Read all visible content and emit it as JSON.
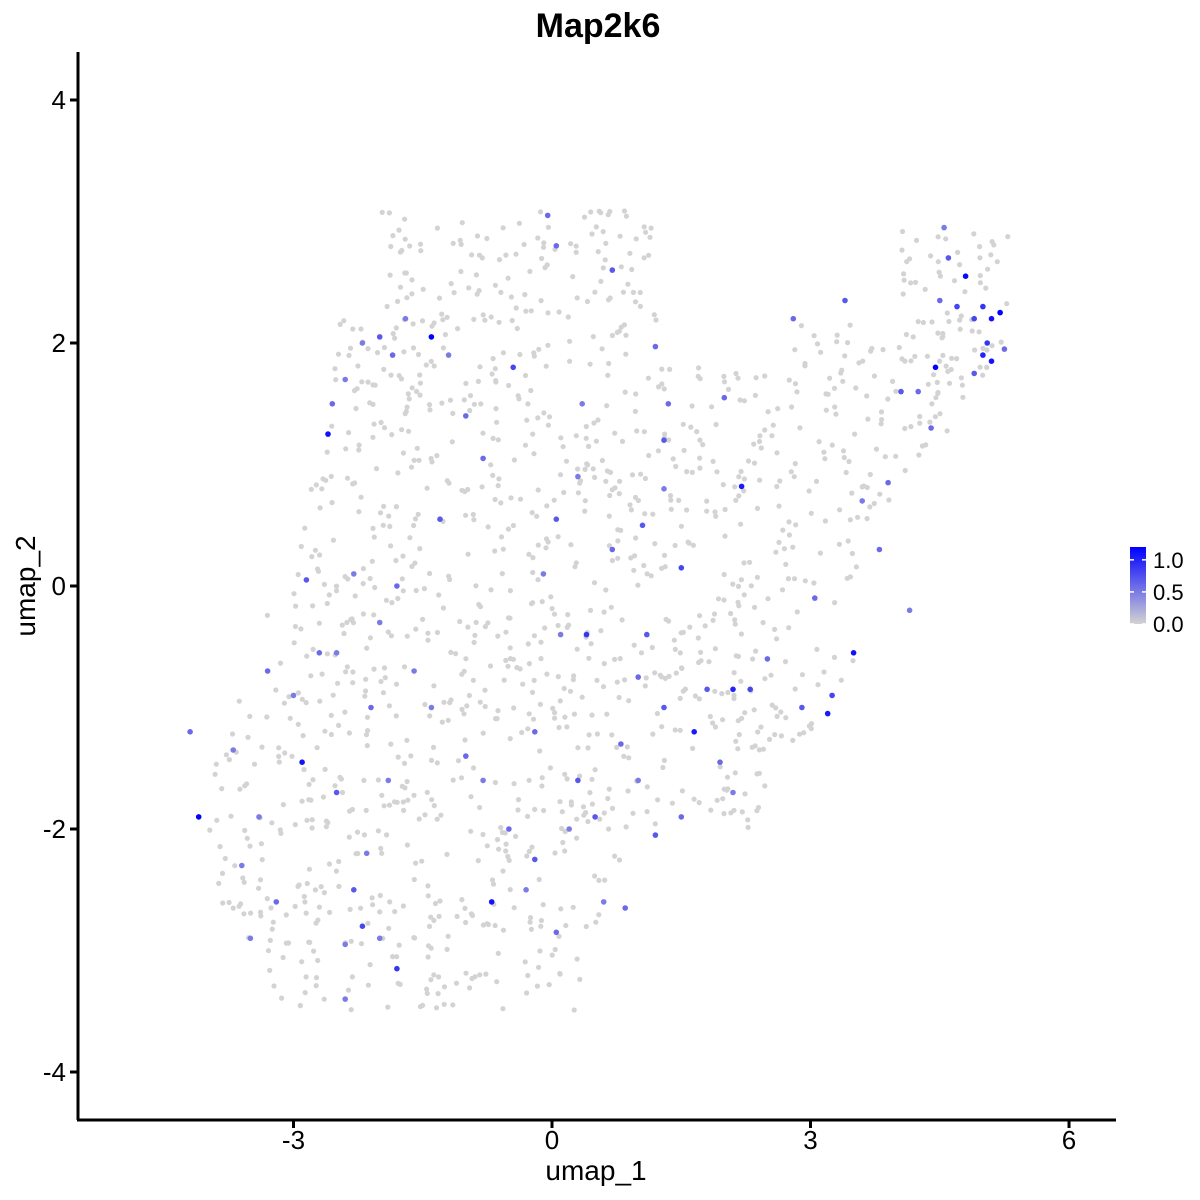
{
  "chart_data": {
    "type": "scatter",
    "title": "Map2k6",
    "xlabel": "umap_1",
    "ylabel": "umap_2",
    "xlim": [
      -5.6,
      6.6
    ],
    "ylim": [
      -4.35,
      4.4
    ],
    "x_ticks": [
      -3,
      0,
      3,
      6
    ],
    "x_tick_labels": [
      "-3",
      "0",
      "3",
      "6"
    ],
    "y_ticks": [
      -4,
      -2,
      0,
      2,
      4
    ],
    "y_tick_labels": [
      "-4",
      "-2",
      "0",
      "2",
      "4"
    ],
    "grid": false,
    "color_scale": {
      "low": "#d3d3d3",
      "high": "#0000ff",
      "min": 0.0,
      "max": 1.2,
      "breaks": [
        1.0,
        0.5,
        0.0
      ],
      "break_labels": [
        "1.0",
        "0.5",
        "0.0"
      ],
      "legend_position": "right"
    },
    "background_points": {
      "note_count": 1400,
      "color": "#d3d3d3",
      "value": 0
    },
    "expressing_points": [
      [
        -4.1,
        -1.9,
        1.2
      ],
      [
        -4.2,
        -1.2,
        0.6
      ],
      [
        -3.7,
        -1.35,
        0.5
      ],
      [
        -3.6,
        -2.3,
        0.5
      ],
      [
        -3.5,
        -2.9,
        0.5
      ],
      [
        -3.4,
        -1.9,
        0.5
      ],
      [
        -3.3,
        -0.7,
        0.6
      ],
      [
        -3.2,
        -2.6,
        0.6
      ],
      [
        -2.9,
        -1.45,
        1.1
      ],
      [
        -2.85,
        0.05,
        0.7
      ],
      [
        -2.7,
        -0.55,
        0.6
      ],
      [
        -2.5,
        -1.7,
        0.7
      ],
      [
        -2.4,
        -2.95,
        0.5
      ],
      [
        -2.3,
        -2.5,
        0.7
      ],
      [
        -2.2,
        -2.8,
        0.8
      ],
      [
        -2.15,
        -2.2,
        0.5
      ],
      [
        -2.4,
        -3.4,
        0.5
      ],
      [
        -2.0,
        -2.9,
        0.5
      ],
      [
        -1.8,
        -3.15,
        0.9
      ],
      [
        -2.5,
        -0.55,
        0.5
      ],
      [
        -2.3,
        0.1,
        0.5
      ],
      [
        -2.0,
        -0.3,
        0.5
      ],
      [
        -1.8,
        0.0,
        0.6
      ],
      [
        -1.6,
        -0.7,
        0.5
      ],
      [
        -1.4,
        -1.0,
        0.5
      ],
      [
        -2.6,
        1.25,
        1.1
      ],
      [
        -2.55,
        1.5,
        0.6
      ],
      [
        -2.4,
        1.7,
        0.5
      ],
      [
        -2.2,
        2.0,
        0.5
      ],
      [
        -2.0,
        2.05,
        0.7
      ],
      [
        -1.85,
        1.9,
        0.6
      ],
      [
        -1.7,
        2.2,
        0.5
      ],
      [
        -1.4,
        2.05,
        1.2
      ],
      [
        -1.2,
        1.9,
        0.5
      ],
      [
        -1.0,
        1.4,
        0.6
      ],
      [
        -1.3,
        0.55,
        0.7
      ],
      [
        -0.8,
        1.05,
        0.6
      ],
      [
        -0.7,
        -2.6,
        1.1
      ],
      [
        -0.5,
        -2.0,
        0.6
      ],
      [
        -0.3,
        -2.5,
        0.5
      ],
      [
        -0.2,
        -2.25,
        0.7
      ],
      [
        0.05,
        -2.85,
        0.6
      ],
      [
        0.2,
        -2.0,
        0.5
      ],
      [
        0.5,
        -1.9,
        0.7
      ],
      [
        0.6,
        -2.6,
        0.5
      ],
      [
        0.85,
        -2.65,
        0.6
      ],
      [
        1.0,
        -1.6,
        0.5
      ],
      [
        1.2,
        -2.05,
        0.7
      ],
      [
        1.5,
        -1.9,
        0.6
      ],
      [
        1.0,
        -0.75,
        0.6
      ],
      [
        1.1,
        -0.4,
        0.7
      ],
      [
        1.65,
        -1.2,
        1.05
      ],
      [
        1.8,
        -0.85,
        0.7
      ],
      [
        2.1,
        -0.85,
        1.0
      ],
      [
        2.3,
        -0.85,
        0.8
      ],
      [
        2.1,
        -1.7,
        0.5
      ],
      [
        1.95,
        -1.45,
        0.6
      ],
      [
        0.4,
        -0.4,
        0.9
      ],
      [
        0.1,
        -0.4,
        0.5
      ],
      [
        -0.1,
        0.1,
        0.5
      ],
      [
        0.05,
        0.55,
        0.7
      ],
      [
        0.3,
        0.9,
        0.5
      ],
      [
        0.7,
        0.3,
        0.6
      ],
      [
        1.05,
        0.5,
        0.7
      ],
      [
        1.5,
        0.15,
        0.8
      ],
      [
        1.3,
        0.8,
        0.5
      ],
      [
        1.35,
        1.5,
        0.6
      ],
      [
        1.3,
        1.2,
        0.7
      ],
      [
        2.2,
        0.82,
        1.05
      ],
      [
        2.0,
        1.55,
        0.6
      ],
      [
        0.7,
        2.6,
        0.7
      ],
      [
        0.05,
        2.8,
        0.6
      ],
      [
        -0.05,
        3.05,
        0.6
      ],
      [
        -0.45,
        1.8,
        0.8
      ],
      [
        0.35,
        1.5,
        0.5
      ],
      [
        1.2,
        1.97,
        0.6
      ],
      [
        2.8,
        2.2,
        0.6
      ],
      [
        3.4,
        2.35,
        0.7
      ],
      [
        3.25,
        -0.9,
        0.8
      ],
      [
        3.2,
        -1.05,
        1.05
      ],
      [
        3.5,
        -0.55,
        1.1
      ],
      [
        3.9,
        0.85,
        0.6
      ],
      [
        4.05,
        1.6,
        0.7
      ],
      [
        4.25,
        1.6,
        0.6
      ],
      [
        4.45,
        1.8,
        1.2
      ],
      [
        4.5,
        2.35,
        0.6
      ],
      [
        4.6,
        2.7,
        0.7
      ],
      [
        4.7,
        2.3,
        0.8
      ],
      [
        4.8,
        2.55,
        1.15
      ],
      [
        4.9,
        2.2,
        0.8
      ],
      [
        5.0,
        2.3,
        0.9
      ],
      [
        5.1,
        2.2,
        1.1
      ],
      [
        5.2,
        2.25,
        1.2
      ],
      [
        5.1,
        1.85,
        1.1
      ],
      [
        4.9,
        1.75,
        0.7
      ],
      [
        5.0,
        1.9,
        1.0
      ],
      [
        5.25,
        1.95,
        0.6
      ],
      [
        5.05,
        2.0,
        0.9
      ],
      [
        4.4,
        1.3,
        0.6
      ],
      [
        4.55,
        2.95,
        0.5
      ],
      [
        -3.0,
        -0.9,
        0.5
      ],
      [
        -2.1,
        -1.0,
        0.6
      ],
      [
        -1.9,
        -1.6,
        0.5
      ],
      [
        -1.0,
        -1.4,
        0.6
      ],
      [
        -0.8,
        -1.6,
        0.5
      ],
      [
        -0.2,
        -1.2,
        0.6
      ],
      [
        0.3,
        -1.6,
        0.7
      ],
      [
        0.8,
        -1.3,
        0.6
      ],
      [
        1.3,
        -1.0,
        0.7
      ],
      [
        2.5,
        -0.6,
        0.6
      ],
      [
        2.9,
        -1.0,
        0.7
      ],
      [
        3.05,
        -0.1,
        0.6
      ],
      [
        3.6,
        0.7,
        0.5
      ],
      [
        3.8,
        0.3,
        0.6
      ],
      [
        4.15,
        -0.2,
        0.5
      ]
    ]
  }
}
